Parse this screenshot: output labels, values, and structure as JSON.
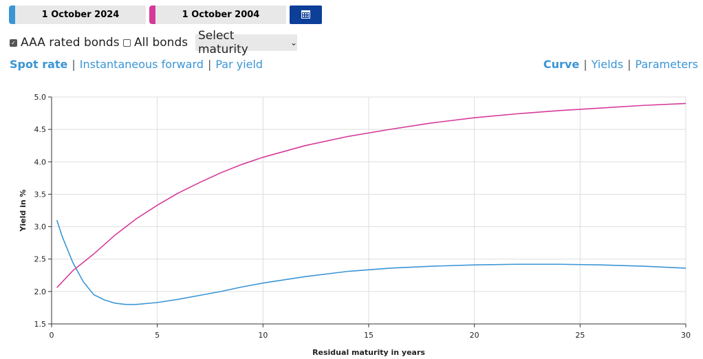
{
  "controls": {
    "aaa_label": "AAA rated bonds",
    "all_label": "All bonds",
    "select_label": "Select maturity",
    "tabs_left": [
      "Spot rate",
      "Instantaneous forward",
      "Par yield"
    ],
    "tabs_right": [
      "Curve",
      "Yields",
      "Parameters"
    ]
  },
  "chart_data": {
    "type": "line",
    "xlabel": "Residual maturity in years",
    "ylabel": "Yield in %",
    "xlim": [
      0,
      30
    ],
    "ylim": [
      1.5,
      5.0
    ],
    "xticks": [
      0,
      5,
      10,
      15,
      20,
      25,
      30
    ],
    "yticks": [
      1.5,
      {
        "value": 2,
        "label": "2.0"
      },
      2.5,
      {
        "value": 3,
        "label": "3.0"
      },
      3.5,
      {
        "value": 4,
        "label": "4.0"
      },
      4.5,
      {
        "value": 5,
        "label": "5.0"
      }
    ],
    "grid": true,
    "series": [
      {
        "name": "1 October 2024",
        "color": "#3a95d5",
        "x": [
          0.25,
          0.5,
          1,
          1.5,
          2,
          2.5,
          3,
          3.5,
          4,
          5,
          6,
          7,
          8,
          9,
          10,
          12,
          14,
          16,
          18,
          20,
          22,
          24,
          26,
          28,
          30
        ],
        "values": [
          3.1,
          2.85,
          2.45,
          2.15,
          1.95,
          1.87,
          1.82,
          1.8,
          1.8,
          1.83,
          1.88,
          1.94,
          2.0,
          2.07,
          2.13,
          2.23,
          2.31,
          2.36,
          2.39,
          2.41,
          2.42,
          2.42,
          2.41,
          2.39,
          2.36
        ]
      },
      {
        "name": "1 October 2004",
        "color": "#d6399a",
        "x": [
          0.25,
          1,
          2,
          3,
          4,
          5,
          6,
          7,
          8,
          9,
          10,
          12,
          14,
          16,
          18,
          20,
          22,
          24,
          26,
          28,
          30
        ],
        "values": [
          2.06,
          2.32,
          2.58,
          2.87,
          3.12,
          3.33,
          3.52,
          3.68,
          3.83,
          3.96,
          4.07,
          4.25,
          4.39,
          4.5,
          4.6,
          4.68,
          4.74,
          4.79,
          4.83,
          4.87,
          4.9
        ]
      }
    ]
  }
}
